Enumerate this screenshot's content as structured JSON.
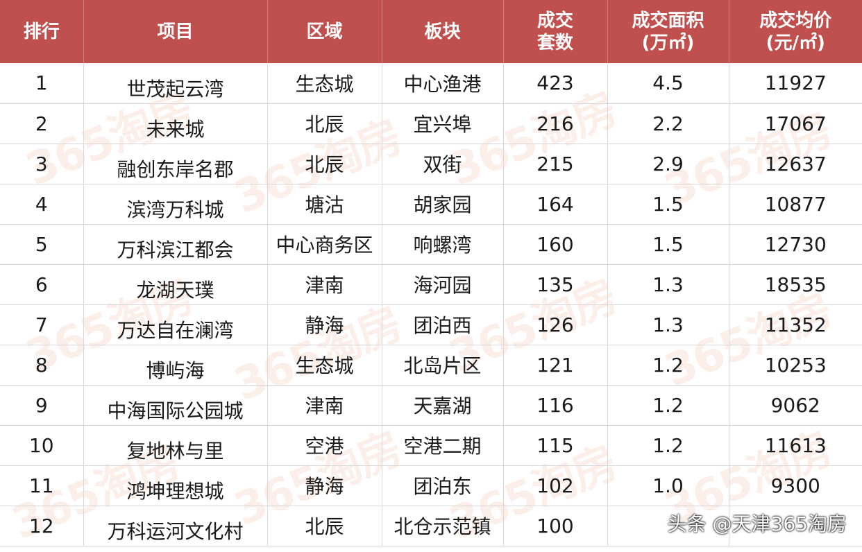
{
  "table": {
    "headers": {
      "rank": "排行",
      "project": "项目",
      "district": "区域",
      "block": "板块",
      "units_line1": "成交",
      "units_line2": "套数",
      "area_line1": "成交面积",
      "area_line2": "(万㎡)",
      "price_line1": "成交均价",
      "price_line2": "(元/㎡)"
    },
    "rows": [
      {
        "rank": "1",
        "project": "世茂起云湾",
        "district": "生态城",
        "block": "中心渔港",
        "units": "423",
        "area": "4.5",
        "price": "11927"
      },
      {
        "rank": "2",
        "project": "未来城",
        "district": "北辰",
        "block": "宜兴埠",
        "units": "216",
        "area": "2.2",
        "price": "17067"
      },
      {
        "rank": "3",
        "project": "融创东岸名郡",
        "district": "北辰",
        "block": "双街",
        "units": "215",
        "area": "2.9",
        "price": "12637"
      },
      {
        "rank": "4",
        "project": "滨湾万科城",
        "district": "塘沽",
        "block": "胡家园",
        "units": "164",
        "area": "1.5",
        "price": "10877"
      },
      {
        "rank": "5",
        "project": "万科滨江都会",
        "district": "中心商务区",
        "block": "响螺湾",
        "units": "160",
        "area": "1.5",
        "price": "12730"
      },
      {
        "rank": "6",
        "project": "龙湖天璞",
        "district": "津南",
        "block": "海河园",
        "units": "135",
        "area": "1.3",
        "price": "18535"
      },
      {
        "rank": "7",
        "project": "万达自在澜湾",
        "district": "静海",
        "block": "团泊西",
        "units": "126",
        "area": "1.3",
        "price": "11352"
      },
      {
        "rank": "8",
        "project": "博屿海",
        "district": "生态城",
        "block": "北岛片区",
        "units": "121",
        "area": "1.2",
        "price": "10253"
      },
      {
        "rank": "9",
        "project": "中海国际公园城",
        "district": "津南",
        "block": "天嘉湖",
        "units": "116",
        "area": "1.2",
        "price": "9062"
      },
      {
        "rank": "10",
        "project": "复地林与里",
        "district": "空港",
        "block": "空港二期",
        "units": "115",
        "area": "1.2",
        "price": "11613"
      },
      {
        "rank": "11",
        "project": "鸿坤理想城",
        "district": "静海",
        "block": "团泊东",
        "units": "102",
        "area": "1.0",
        "price": "9300"
      },
      {
        "rank": "12",
        "project": "万科运河文化村",
        "district": "北辰",
        "block": "北仓示范镇",
        "units": "100",
        "area": "",
        "price": ""
      }
    ]
  },
  "watermark_text": "365淘房",
  "credit": "头条 @天津365淘房",
  "colors": {
    "header_bg": "#c0504d",
    "header_text": "#ffffff",
    "watermark": "#f3b9a2"
  }
}
